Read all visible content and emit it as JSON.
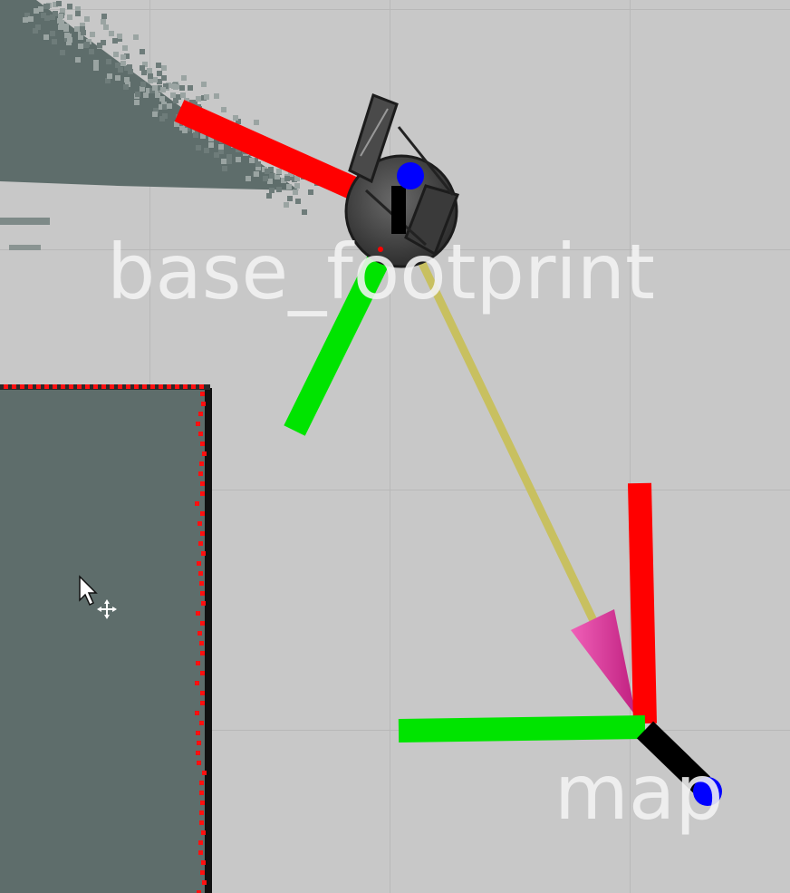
{
  "frames": {
    "base_frame_label": "base_footprint",
    "map_frame_label": "map"
  },
  "axis_colors": {
    "x": "#ff0000",
    "y": "#00ee00",
    "z": "#0000ff",
    "tf_link": "#c8c060",
    "tf_arrow": "#e040a0"
  },
  "map_colors": {
    "background": "#c8c8c8",
    "occupied": "#5e6d6b",
    "laser_scan": "#ff1010"
  },
  "icons": [
    "robot-icon",
    "mouse-pointer-icon",
    "move-cursor-icon"
  ]
}
